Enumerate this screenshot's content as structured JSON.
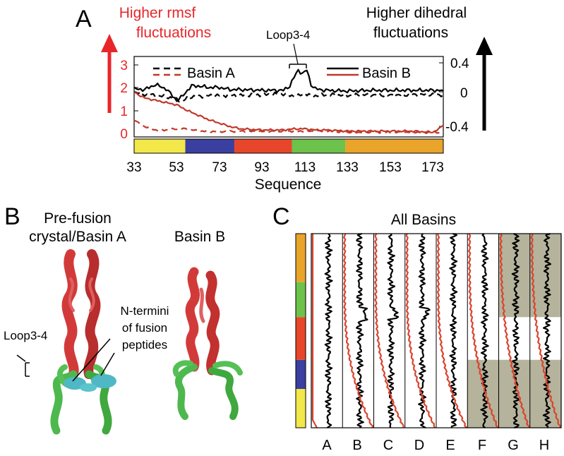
{
  "panels": {
    "A": {
      "letter": "A",
      "left_title": [
        "Higher rmsf",
        "fluctuations"
      ],
      "right_title": [
        "Higher dihedral",
        "fluctuations"
      ],
      "annotation": "Loop3-4",
      "legend": [
        "Basin A",
        "Basin B"
      ],
      "xlabel": "Sequence",
      "left_ticks": [
        "3",
        "2",
        "1",
        "0"
      ],
      "right_ticks": [
        "0.4",
        "0",
        "-0.4"
      ],
      "x_ticks": [
        "33",
        "53",
        "73",
        "93",
        "113",
        "133",
        "153",
        "173"
      ]
    },
    "B": {
      "letter": "B",
      "left_title": [
        "Pre-fusion",
        "crystal/Basin A"
      ],
      "right_title": "Basin B",
      "loop_label": "Loop3-4",
      "nterm_label": [
        "N-termini",
        "of fusion",
        "peptides"
      ]
    },
    "C": {
      "letter": "C",
      "title": "All Basins",
      "columns": [
        "A",
        "B",
        "C",
        "D",
        "E",
        "F",
        "G",
        "H"
      ]
    }
  },
  "chart_data": [
    {
      "type": "line",
      "panel": "A",
      "xlim": [
        33,
        178
      ],
      "ylim_left": [
        0,
        3.2
      ],
      "ylim_right": [
        -0.45,
        0.45
      ],
      "series": [
        {
          "name": "Basin A",
          "style": "dashed",
          "axis": "right",
          "color": "#000000",
          "x": [
            33,
            38,
            43,
            48,
            53,
            56,
            58,
            63,
            73,
            83,
            93,
            103,
            106,
            110,
            113,
            116,
            123,
            133,
            143,
            153,
            163,
            173,
            178
          ],
          "y": [
            0.0,
            -0.04,
            -0.05,
            -0.07,
            -0.1,
            -0.13,
            -0.08,
            -0.06,
            -0.05,
            -0.05,
            -0.04,
            -0.03,
            -0.05,
            -0.06,
            -0.02,
            -0.06,
            -0.04,
            -0.05,
            -0.04,
            -0.05,
            -0.04,
            -0.04,
            -0.04
          ]
        },
        {
          "name": "Basin A",
          "style": "dashed",
          "axis": "left",
          "color": "#c0392b",
          "x": [
            33,
            35,
            38,
            43,
            48,
            53,
            58,
            63,
            73,
            83,
            93,
            103,
            113,
            123,
            133,
            143,
            153,
            163,
            173,
            178
          ],
          "y": [
            0.6,
            0.45,
            0.3,
            0.15,
            0.15,
            0.2,
            0.2,
            0.1,
            0.08,
            0.1,
            0.08,
            0.1,
            0.1,
            0.1,
            0.05,
            0.05,
            0.05,
            0.05,
            0.05,
            0.05
          ]
        },
        {
          "name": "Basin B",
          "style": "solid",
          "axis": "right",
          "color": "#000000",
          "x": [
            33,
            38,
            43,
            48,
            53,
            55,
            58,
            60,
            63,
            68,
            73,
            78,
            83,
            93,
            103,
            106,
            108,
            110,
            112,
            114,
            116,
            118,
            123,
            133,
            143,
            153,
            163,
            173,
            178
          ],
          "y": [
            0.04,
            0.03,
            0.1,
            0.04,
            -0.12,
            -0.08,
            0.02,
            0.08,
            0.08,
            0.06,
            0.06,
            0.03,
            0.03,
            0.02,
            0.02,
            0.08,
            0.2,
            0.3,
            0.25,
            0.3,
            0.1,
            0.04,
            0.02,
            0.01,
            0.02,
            0.02,
            0.02,
            0.02,
            0.02
          ]
        },
        {
          "name": "Basin B",
          "style": "solid",
          "axis": "left",
          "color": "#c0392b",
          "x": [
            33,
            38,
            43,
            48,
            53,
            58,
            63,
            68,
            73,
            78,
            83,
            93,
            103,
            108,
            113,
            118,
            123,
            133,
            143,
            153,
            163,
            173,
            176,
            178
          ],
          "y": [
            1.8,
            1.55,
            1.45,
            1.35,
            1.25,
            1.0,
            0.8,
            0.6,
            0.45,
            0.3,
            0.2,
            0.15,
            0.15,
            0.2,
            0.2,
            0.15,
            0.15,
            0.1,
            0.1,
            0.1,
            0.1,
            0.05,
            0.2,
            0.35
          ]
        }
      ],
      "domains": [
        {
          "from": 33,
          "to": 57,
          "color": "#f2e84a"
        },
        {
          "from": 57,
          "to": 80,
          "color": "#3a3fa0"
        },
        {
          "from": 80,
          "to": 107,
          "color": "#e8462a"
        },
        {
          "from": 107,
          "to": 132,
          "color": "#6cc24a"
        },
        {
          "from": 132,
          "to": 178,
          "color": "#eaa42a"
        }
      ]
    },
    {
      "type": "line",
      "panel": "C",
      "columns": [
        "A",
        "B",
        "C",
        "D",
        "E",
        "F",
        "G",
        "H"
      ],
      "shaded": {
        "F": [
          [
            0.0,
            0.35
          ]
        ],
        "G": [
          [
            0.0,
            0.35
          ],
          [
            0.57,
            1.0
          ]
        ],
        "H": [
          [
            0.0,
            0.35
          ],
          [
            0.57,
            1.0
          ]
        ]
      },
      "domains": [
        {
          "from": 0.0,
          "to": 0.2,
          "color": "#f2e84a"
        },
        {
          "from": 0.2,
          "to": 0.35,
          "color": "#3a3fa0"
        },
        {
          "from": 0.35,
          "to": 0.57,
          "color": "#e8462a"
        },
        {
          "from": 0.57,
          "to": 0.75,
          "color": "#6cc24a"
        },
        {
          "from": 0.75,
          "to": 1.0,
          "color": "#eaa42a"
        }
      ]
    }
  ]
}
